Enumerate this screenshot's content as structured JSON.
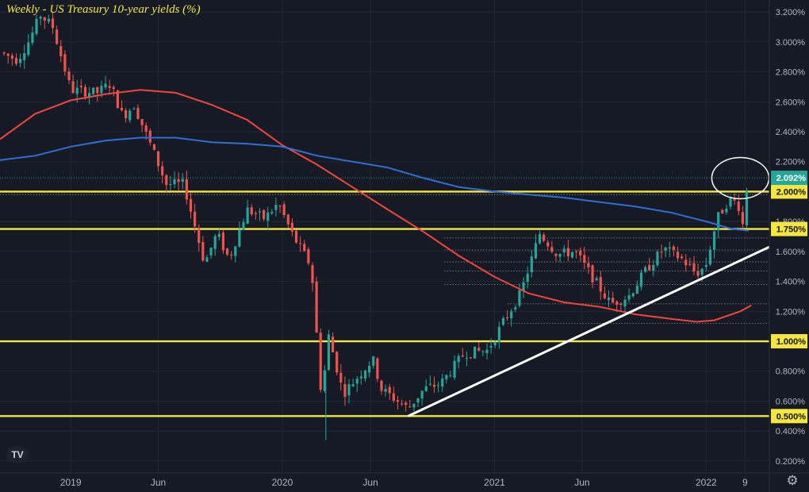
{
  "title": "Weekly - US Treasury 10-year yields (%)",
  "logo_text": "TV",
  "settings_icon": "gear-icon",
  "colors": {
    "background": "#161a25",
    "up": "#26a69a",
    "down": "#ef5350",
    "ma_fast": "#f0453f",
    "ma_slow": "#2f6fd6",
    "horizontal": "#f5e642",
    "trendline": "#ffffff",
    "axis_text": "#b2b5be"
  },
  "chart_data": {
    "type": "candlestick",
    "title": "Weekly - US Treasury 10-year yields (%)",
    "y_unit": "%",
    "ylim": [
      0.12,
      3.28
    ],
    "y_ticks": [
      "0.200%",
      "0.400%",
      "0.600%",
      "0.800%",
      "1.000%",
      "1.200%",
      "1.400%",
      "1.600%",
      "1.800%",
      "2.000%",
      "2.200%",
      "2.400%",
      "2.600%",
      "2.800%",
      "3.000%",
      "3.200%"
    ],
    "x_ticks": [
      "2019",
      "Jun",
      "2020",
      "Jun",
      "2021",
      "Jun",
      "2022",
      "9"
    ],
    "x_tick_dates": [
      "2019-01-01",
      "2019-06-01",
      "2020-01-01",
      "2020-06-01",
      "2021-01-01",
      "2021-06-01",
      "2022-01-01",
      "2022-03-09"
    ],
    "xlim": [
      "2018-09-01",
      "2022-04-20"
    ],
    "last_price": 2.092,
    "last_price_label": "2.092%",
    "horizontal_levels": [
      {
        "value": 2.0,
        "label": "2.000%"
      },
      {
        "value": 1.75,
        "label": "1.750%"
      },
      {
        "value": 1.0,
        "label": "1.000%"
      },
      {
        "value": 0.5,
        "label": "0.500%"
      }
    ],
    "trendline": {
      "from": {
        "date": "2020-08-05",
        "value": 0.5
      },
      "to": {
        "date": "2022-04-20",
        "value": 1.63
      }
    },
    "highlight": {
      "date": "2022-03-01",
      "value": 2.09
    },
    "ma_fast": [
      {
        "date": "2018-09-01",
        "value": 2.35
      },
      {
        "date": "2018-11-01",
        "value": 2.52
      },
      {
        "date": "2019-01-01",
        "value": 2.61
      },
      {
        "date": "2019-03-01",
        "value": 2.65
      },
      {
        "date": "2019-05-01",
        "value": 2.68
      },
      {
        "date": "2019-07-01",
        "value": 2.66
      },
      {
        "date": "2019-09-01",
        "value": 2.58
      },
      {
        "date": "2019-11-01",
        "value": 2.48
      },
      {
        "date": "2020-01-01",
        "value": 2.31
      },
      {
        "date": "2020-03-01",
        "value": 2.18
      },
      {
        "date": "2020-05-01",
        "value": 2.03
      },
      {
        "date": "2020-07-01",
        "value": 1.88
      },
      {
        "date": "2020-09-01",
        "value": 1.73
      },
      {
        "date": "2020-11-01",
        "value": 1.57
      },
      {
        "date": "2021-01-01",
        "value": 1.43
      },
      {
        "date": "2021-03-01",
        "value": 1.32
      },
      {
        "date": "2021-05-01",
        "value": 1.26
      },
      {
        "date": "2021-07-01",
        "value": 1.23
      },
      {
        "date": "2021-09-01",
        "value": 1.18
      },
      {
        "date": "2021-11-01",
        "value": 1.15
      },
      {
        "date": "2021-12-15",
        "value": 1.13
      },
      {
        "date": "2022-01-15",
        "value": 1.14
      },
      {
        "date": "2022-03-01",
        "value": 1.2
      },
      {
        "date": "2022-03-20",
        "value": 1.24
      }
    ],
    "ma_slow": [
      {
        "date": "2018-09-01",
        "value": 2.21
      },
      {
        "date": "2018-11-01",
        "value": 2.24
      },
      {
        "date": "2019-01-01",
        "value": 2.3
      },
      {
        "date": "2019-03-01",
        "value": 2.34
      },
      {
        "date": "2019-05-01",
        "value": 2.36
      },
      {
        "date": "2019-07-01",
        "value": 2.36
      },
      {
        "date": "2019-09-01",
        "value": 2.33
      },
      {
        "date": "2019-11-01",
        "value": 2.32
      },
      {
        "date": "2020-01-01",
        "value": 2.3
      },
      {
        "date": "2020-03-01",
        "value": 2.24
      },
      {
        "date": "2020-05-01",
        "value": 2.2
      },
      {
        "date": "2020-07-01",
        "value": 2.16
      },
      {
        "date": "2020-09-01",
        "value": 2.09
      },
      {
        "date": "2020-11-01",
        "value": 2.03
      },
      {
        "date": "2021-01-01",
        "value": 2.0
      },
      {
        "date": "2021-03-01",
        "value": 1.98
      },
      {
        "date": "2021-05-01",
        "value": 1.96
      },
      {
        "date": "2021-07-01",
        "value": 1.93
      },
      {
        "date": "2021-09-01",
        "value": 1.9
      },
      {
        "date": "2021-11-01",
        "value": 1.86
      },
      {
        "date": "2022-01-01",
        "value": 1.8
      },
      {
        "date": "2022-02-15",
        "value": 1.75
      },
      {
        "date": "2022-03-15",
        "value": 1.74
      }
    ],
    "anchors": [
      {
        "date": "2018-09-01",
        "value": 2.93
      },
      {
        "date": "2018-10-01",
        "value": 2.88
      },
      {
        "date": "2018-10-20",
        "value": 3.0
      },
      {
        "date": "2018-11-10",
        "value": 3.18
      },
      {
        "date": "2018-12-01",
        "value": 3.1
      },
      {
        "date": "2019-01-01",
        "value": 2.68
      },
      {
        "date": "2019-02-15",
        "value": 2.66
      },
      {
        "date": "2019-03-10",
        "value": 2.72
      },
      {
        "date": "2019-04-01",
        "value": 2.5
      },
      {
        "date": "2019-04-20",
        "value": 2.58
      },
      {
        "date": "2019-05-20",
        "value": 2.3
      },
      {
        "date": "2019-06-15",
        "value": 2.05
      },
      {
        "date": "2019-07-15",
        "value": 2.05
      },
      {
        "date": "2019-08-20",
        "value": 1.52
      },
      {
        "date": "2019-09-10",
        "value": 1.72
      },
      {
        "date": "2019-10-01",
        "value": 1.55
      },
      {
        "date": "2019-11-01",
        "value": 1.88
      },
      {
        "date": "2019-12-01",
        "value": 1.82
      },
      {
        "date": "2019-12-25",
        "value": 1.92
      },
      {
        "date": "2020-01-20",
        "value": 1.7
      },
      {
        "date": "2020-02-20",
        "value": 1.5
      },
      {
        "date": "2020-03-09",
        "value": 0.6
      },
      {
        "date": "2020-03-20",
        "value": 1.05
      },
      {
        "date": "2020-04-15",
        "value": 0.65
      },
      {
        "date": "2020-06-05",
        "value": 0.88
      },
      {
        "date": "2020-06-20",
        "value": 0.68
      },
      {
        "date": "2020-08-05",
        "value": 0.55
      },
      {
        "date": "2020-09-01",
        "value": 0.68
      },
      {
        "date": "2020-10-01",
        "value": 0.72
      },
      {
        "date": "2020-11-10",
        "value": 0.92
      },
      {
        "date": "2020-12-20",
        "value": 0.94
      },
      {
        "date": "2021-01-15",
        "value": 1.12
      },
      {
        "date": "2021-02-15",
        "value": 1.32
      },
      {
        "date": "2021-03-20",
        "value": 1.72
      },
      {
        "date": "2021-04-20",
        "value": 1.58
      },
      {
        "date": "2021-05-20",
        "value": 1.6
      },
      {
        "date": "2021-06-15",
        "value": 1.45
      },
      {
        "date": "2021-07-20",
        "value": 1.25
      },
      {
        "date": "2021-08-20",
        "value": 1.3
      },
      {
        "date": "2021-09-20",
        "value": 1.48
      },
      {
        "date": "2021-10-20",
        "value": 1.62
      },
      {
        "date": "2021-11-20",
        "value": 1.55
      },
      {
        "date": "2021-12-15",
        "value": 1.45
      },
      {
        "date": "2021-12-31",
        "value": 1.5
      },
      {
        "date": "2022-01-20",
        "value": 1.82
      },
      {
        "date": "2022-02-10",
        "value": 1.95
      },
      {
        "date": "2022-02-25",
        "value": 1.92
      },
      {
        "date": "2022-03-05",
        "value": 1.78
      },
      {
        "date": "2022-03-14",
        "value": 2.09
      }
    ],
    "dotted_levels": [
      1.98,
      1.69,
      1.61,
      1.53,
      1.47,
      1.38,
      1.25,
      1.12
    ]
  }
}
